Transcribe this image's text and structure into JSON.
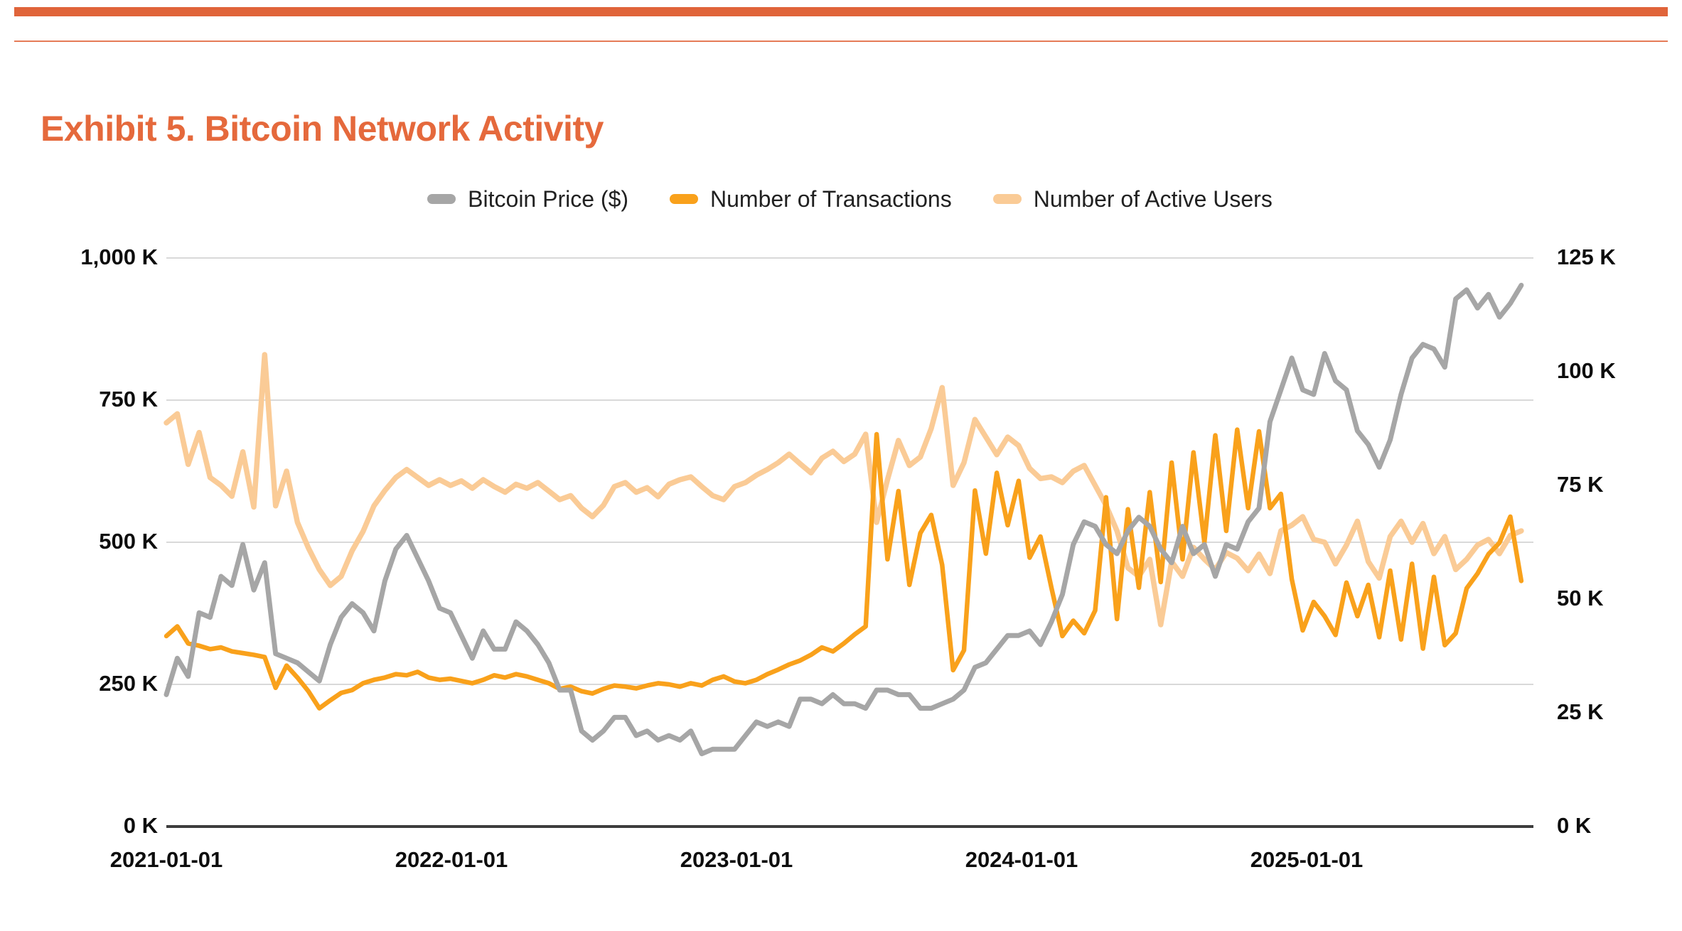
{
  "header": {
    "title": "Exhibit 5. Bitcoin Network Activity",
    "accent_color": "#E0643A",
    "title_color": "#E5693C"
  },
  "legend": [
    {
      "label": "Bitcoin Price ($)",
      "color": "#A6A6A6"
    },
    {
      "label": "Number of Transactions",
      "color": "#F9A11B"
    },
    {
      "label": "Number of Active Users",
      "color": "#FACB96"
    }
  ],
  "chart_data": {
    "type": "line",
    "title": "Exhibit 5. Bitcoin Network Activity",
    "grid": "horizontal gridlines at left-axis 250 K intervals, color #d9d9d9",
    "legend_position": "top-center",
    "x_axis": {
      "tick_labels": [
        "2021-01-01",
        "2022-01-01",
        "2023-01-01",
        "2024-01-01",
        "2025-01-01"
      ],
      "range_note": "data sampled every 14 days from 2021-01-01 to ~2025-10"
    },
    "left_axis": {
      "tick_labels": [
        "0 K",
        "250 K",
        "500 K",
        "750 K",
        "1,000 K"
      ],
      "tick_values": [
        0,
        250,
        500,
        750,
        1000
      ],
      "range": [
        0,
        1000
      ],
      "applies_to": [
        "Number of Transactions",
        "Number of Active Users"
      ]
    },
    "right_axis": {
      "tick_labels": [
        "0 K",
        "25 K",
        "50 K",
        "75 K",
        "100 K",
        "125 K"
      ],
      "tick_values": [
        0,
        25,
        50,
        75,
        100,
        125
      ],
      "range": [
        0,
        125
      ],
      "applies_to": [
        "Bitcoin Price ($)"
      ]
    },
    "sampling_days": 14,
    "series": [
      {
        "name": "Bitcoin Price ($)",
        "axis": "right",
        "color": "#A6A6A6",
        "unit": "K $",
        "values": [
          29,
          37,
          33,
          47,
          46,
          55,
          53,
          62,
          52,
          58,
          38,
          37,
          36,
          34,
          32,
          40,
          46,
          49,
          47,
          43,
          54,
          61,
          64,
          59,
          54,
          48,
          47,
          42,
          37,
          43,
          39,
          39,
          45,
          43,
          40,
          36,
          30,
          30,
          21,
          19,
          21,
          24,
          24,
          20,
          21,
          19,
          20,
          19,
          21,
          16,
          17,
          17,
          17,
          20,
          23,
          22,
          23,
          22,
          28,
          28,
          27,
          29,
          27,
          27,
          26,
          30,
          30,
          29,
          29,
          26,
          26,
          27,
          28,
          30,
          35,
          36,
          39,
          42,
          42,
          43,
          40,
          45,
          51,
          62,
          67,
          66,
          62,
          60,
          65,
          68,
          66,
          61,
          58,
          66,
          60,
          62,
          55,
          62,
          61,
          67,
          70,
          89,
          96,
          103,
          96,
          95,
          104,
          98,
          96,
          87,
          84,
          79,
          85,
          95,
          103,
          106,
          105,
          101,
          116,
          118,
          114,
          117,
          112,
          115,
          119
        ]
      },
      {
        "name": "Number of Transactions",
        "axis": "left",
        "color": "#F9A11B",
        "unit": "K",
        "values": [
          335,
          352,
          322,
          318,
          312,
          315,
          308,
          305,
          302,
          298,
          244,
          283,
          262,
          238,
          208,
          222,
          235,
          240,
          252,
          258,
          262,
          268,
          266,
          272,
          262,
          258,
          260,
          256,
          252,
          258,
          266,
          262,
          268,
          264,
          258,
          252,
          242,
          246,
          238,
          234,
          242,
          248,
          246,
          243,
          248,
          252,
          250,
          246,
          252,
          248,
          258,
          264,
          255,
          252,
          258,
          268,
          276,
          285,
          292,
          302,
          315,
          308,
          322,
          338,
          352,
          690,
          470,
          590,
          425,
          516,
          548,
          460,
          275,
          310,
          591,
          480,
          622,
          530,
          608,
          473,
          510,
          420,
          335,
          362,
          340,
          380,
          579,
          365,
          558,
          420,
          588,
          430,
          640,
          470,
          658,
          500,
          688,
          520,
          698,
          560,
          695,
          560,
          585,
          435,
          345,
          395,
          370,
          337,
          429,
          370,
          425,
          333,
          450,
          329,
          462,
          313,
          439,
          319,
          340,
          419,
          445,
          479,
          499,
          545,
          432
        ]
      },
      {
        "name": "Number of Active Users",
        "axis": "left",
        "color": "#FACB96",
        "unit": "K",
        "values": [
          710,
          726,
          637,
          693,
          614,
          600,
          581,
          659,
          562,
          830,
          564,
          625,
          535,
          490,
          452,
          424,
          440,
          485,
          519,
          564,
          591,
          614,
          628,
          614,
          600,
          610,
          600,
          608,
          595,
          610,
          598,
          588,
          602,
          595,
          605,
          590,
          575,
          582,
          560,
          545,
          565,
          598,
          605,
          588,
          596,
          580,
          602,
          610,
          615,
          598,
          582,
          575,
          598,
          605,
          618,
          628,
          640,
          655,
          638,
          622,
          648,
          660,
          642,
          655,
          690,
          535,
          610,
          679,
          635,
          650,
          700,
          772,
          600,
          640,
          716,
          685,
          654,
          685,
          670,
          630,
          612,
          615,
          605,
          625,
          635,
          600,
          565,
          520,
          455,
          440,
          470,
          355,
          466,
          440,
          491,
          470,
          452,
          482,
          472,
          450,
          479,
          445,
          520,
          530,
          545,
          505,
          500,
          462,
          495,
          537,
          466,
          437,
          510,
          537,
          500,
          533,
          480,
          510,
          452,
          470,
          495,
          505,
          480,
          512,
          520
        ]
      }
    ]
  }
}
